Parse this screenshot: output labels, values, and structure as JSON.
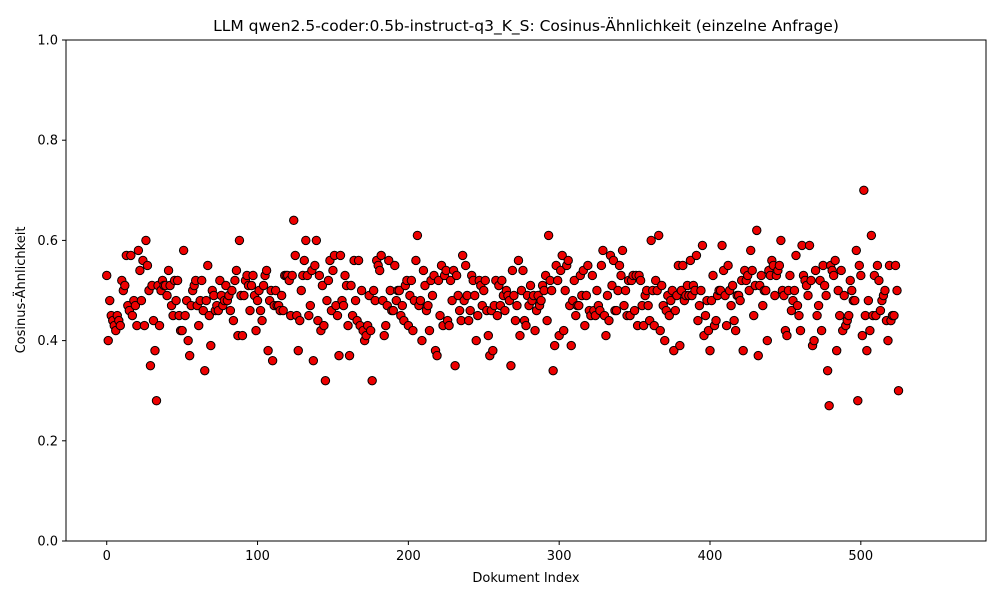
{
  "chart_data": {
    "type": "scatter",
    "title": "LLM qwen2.5-coder:0.5b-instruct-q3_K_S: Cosinus-Ähnlichkeit (einzelne Anfrage)",
    "xlabel": "Dokument Index",
    "ylabel": "Cosinus-Ähnlichkeit",
    "xlim": [
      -27,
      583
    ],
    "ylim": [
      0,
      1
    ],
    "xticks": [
      0,
      100,
      200,
      300,
      400,
      500
    ],
    "yticks": [
      "0.0",
      "0.2",
      "0.4",
      "0.6",
      "0.8",
      "1.0"
    ],
    "grid": false,
    "marker_color": "#ee0000",
    "marker_edge_color": "#000000",
    "series": [
      {
        "x_start": 0,
        "y": [
          0.53,
          0.4,
          0.48,
          0.45,
          0.44,
          0.43,
          0.42,
          0.45,
          0.44,
          0.43,
          0.52,
          0.5,
          0.51,
          0.57,
          0.47,
          0.46,
          0.57,
          0.45,
          0.48,
          0.47,
          0.43,
          0.58,
          0.54,
          0.48,
          0.56,
          0.43,
          0.6,
          0.55,
          0.5,
          0.35,
          0.51,
          0.44,
          0.38,
          0.28,
          0.51,
          0.43,
          0.5,
          0.52,
          0.51,
          0.51,
          0.49,
          0.54,
          0.51,
          0.47,
          0.45,
          0.52,
          0.48,
          0.52,
          0.45,
          0.42,
          0.42,
          0.58,
          0.45,
          0.48,
          0.4,
          0.37,
          0.47,
          0.5,
          0.51,
          0.52,
          0.47,
          0.43,
          0.48,
          0.52,
          0.46,
          0.34,
          0.48,
          0.55,
          0.45,
          0.39,
          0.5,
          0.49,
          0.46,
          0.47,
          0.46,
          0.52,
          0.49,
          0.47,
          0.48,
          0.51,
          0.48,
          0.49,
          0.46,
          0.5,
          0.44,
          0.52,
          0.54,
          0.41,
          0.6,
          0.49,
          0.41,
          0.49,
          0.52,
          0.53,
          0.51,
          0.46,
          0.51,
          0.53,
          0.49,
          0.42,
          0.48,
          0.5,
          0.46,
          0.44,
          0.51,
          0.53,
          0.54,
          0.38,
          0.48,
          0.5,
          0.36,
          0.47,
          0.5,
          0.47,
          0.47,
          0.46,
          0.49,
          0.46,
          0.53,
          0.53,
          0.53,
          0.52,
          0.45,
          0.53,
          0.64,
          0.57,
          0.45,
          0.38,
          0.44,
          0.5,
          0.53,
          0.56,
          0.6,
          0.53,
          0.45,
          0.47,
          0.54,
          0.36,
          0.55,
          0.6,
          0.44,
          0.53,
          0.42,
          0.51,
          0.43,
          0.32,
          0.48,
          0.52,
          0.56,
          0.46,
          0.54,
          0.57,
          0.47,
          0.45,
          0.37,
          0.57,
          0.48,
          0.47,
          0.53,
          0.51,
          0.43,
          0.37,
          0.51,
          0.45,
          0.56,
          0.48,
          0.44,
          0.56,
          0.43,
          0.5,
          0.42,
          0.4,
          0.41,
          0.43,
          0.49,
          0.42,
          0.32,
          0.5,
          0.48,
          0.56,
          0.55,
          0.54,
          0.57,
          0.48,
          0.41,
          0.43,
          0.47,
          0.56,
          0.5,
          0.46,
          0.46,
          0.55,
          0.48,
          0.5,
          0.5,
          0.45,
          0.47,
          0.44,
          0.51,
          0.52,
          0.43,
          0.49,
          0.52,
          0.42,
          0.48,
          0.56,
          0.61,
          0.47,
          0.48,
          0.4,
          0.54,
          0.51,
          0.46,
          0.47,
          0.42,
          0.52,
          0.49,
          0.53,
          0.38,
          0.37,
          0.52,
          0.45,
          0.55,
          0.43,
          0.53,
          0.54,
          0.44,
          0.43,
          0.52,
          0.48,
          0.54,
          0.35,
          0.53,
          0.49,
          0.46,
          0.44,
          0.57,
          0.48,
          0.55,
          0.49,
          0.44,
          0.46,
          0.53,
          0.52,
          0.49,
          0.4,
          0.45,
          0.52,
          0.51,
          0.47,
          0.5,
          0.52,
          0.46,
          0.41,
          0.37,
          0.46,
          0.38,
          0.47,
          0.52,
          0.45,
          0.51,
          0.47,
          0.52,
          0.49,
          0.46,
          0.5,
          0.49,
          0.48,
          0.35,
          0.54,
          0.49,
          0.44,
          0.47,
          0.56,
          0.41,
          0.5,
          0.54,
          0.44,
          0.43,
          0.49,
          0.47,
          0.51,
          0.48,
          0.49,
          0.42,
          0.46,
          0.49,
          0.47,
          0.48,
          0.51,
          0.5,
          0.53,
          0.44,
          0.61,
          0.52,
          0.5,
          0.34,
          0.39,
          0.55,
          0.52,
          0.41,
          0.54,
          0.57,
          0.42,
          0.5,
          0.55,
          0.56,
          0.47,
          0.39,
          0.48,
          0.52,
          0.45,
          0.47,
          0.47,
          0.53,
          0.49,
          0.54,
          0.43,
          0.49,
          0.55,
          0.46,
          0.45,
          0.53,
          0.46,
          0.45,
          0.5,
          0.47,
          0.46,
          0.55,
          0.58,
          0.45,
          0.41,
          0.49,
          0.44,
          0.57,
          0.51,
          0.56,
          0.46,
          0.46,
          0.5,
          0.55,
          0.53,
          0.58,
          0.47,
          0.5,
          0.45,
          0.52,
          0.45,
          0.52,
          0.53,
          0.46,
          0.53,
          0.43,
          0.53,
          0.52,
          0.47,
          0.43,
          0.49,
          0.5,
          0.47,
          0.44,
          0.6,
          0.5,
          0.43,
          0.52,
          0.5,
          0.61,
          0.42,
          0.51,
          0.47,
          0.4,
          0.46,
          0.49,
          0.45,
          0.48,
          0.5,
          0.38,
          0.46,
          0.49,
          0.55,
          0.39,
          0.5,
          0.55,
          0.48,
          0.49,
          0.51,
          0.49,
          0.56,
          0.49,
          0.51,
          0.5,
          0.57,
          0.44,
          0.47,
          0.5,
          0.59,
          0.41,
          0.45,
          0.48,
          0.42,
          0.38,
          0.48,
          0.53,
          0.43,
          0.44,
          0.49,
          0.5,
          0.5,
          0.59,
          0.54,
          0.49,
          0.43,
          0.55,
          0.5,
          0.47,
          0.51,
          0.44,
          0.42,
          0.49,
          0.49,
          0.48,
          0.52,
          0.38,
          0.54,
          0.52,
          0.53,
          0.5,
          0.58,
          0.54,
          0.45,
          0.51,
          0.62,
          0.37,
          0.51,
          0.53,
          0.47,
          0.5,
          0.5,
          0.4,
          0.54,
          0.53,
          0.56,
          0.55,
          0.49,
          0.53,
          0.54,
          0.55,
          0.6,
          0.5,
          0.49,
          0.42,
          0.41,
          0.5,
          0.53,
          0.46,
          0.48,
          0.5,
          0.57,
          0.47,
          0.45,
          0.42,
          0.59,
          0.53,
          0.52,
          0.51,
          0.49,
          0.59,
          0.52,
          0.39,
          0.4,
          0.54,
          0.45,
          0.47,
          0.52,
          0.42,
          0.55,
          0.51,
          0.49,
          0.34,
          0.27,
          0.55,
          0.54,
          0.53,
          0.56,
          0.38,
          0.5,
          0.45,
          0.54,
          0.42,
          0.49,
          0.43,
          0.44,
          0.45,
          0.52,
          0.5,
          0.48,
          0.48,
          0.58,
          0.28,
          0.55,
          0.53,
          0.41,
          0.7,
          0.45,
          0.38,
          0.48,
          0.42,
          0.61,
          0.45,
          0.53,
          0.45,
          0.55,
          0.52,
          0.46,
          0.48,
          0.49,
          0.5,
          0.44,
          0.4,
          0.55,
          0.44,
          0.45,
          0.45,
          0.55,
          0.5,
          0.3
        ]
      }
    ]
  }
}
